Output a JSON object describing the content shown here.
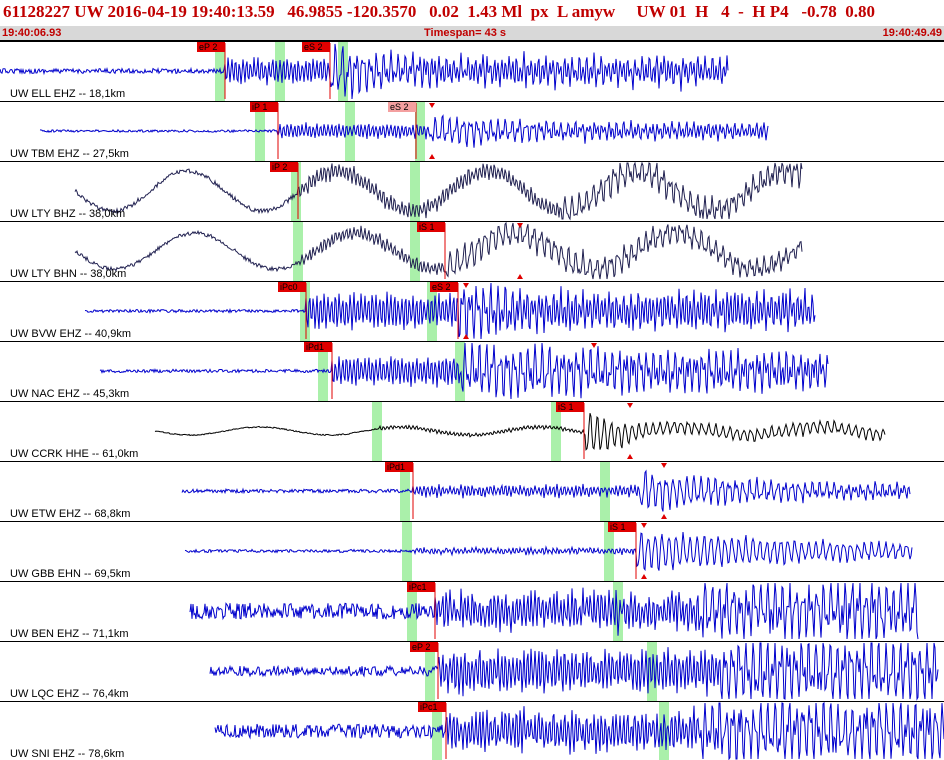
{
  "header": {
    "text": "61128227 UW 2016-04-19 19:40:13.59   46.9855 -120.3570   0.02  1.43 Ml  px  L amyw     UW 01  H   4  -  H P4   -0.78  0.80"
  },
  "subbar": {
    "start_time": "19:40:06.93",
    "timespan": "Timespan=  43 s",
    "end_time": "19:40:49.49"
  },
  "colors": {
    "header_text": "#c00000",
    "trace_blue": "#0000cc",
    "trace_black": "#000000",
    "trace_navy": "#202050",
    "pick_red": "#e00000",
    "pick_pink": "#f4a0a0",
    "window_green": "#aaf0aa",
    "divider": "#000000"
  },
  "traces": [
    {
      "label": "UW ELL EHZ -- 18,1km",
      "color": "blue",
      "start": 0,
      "end": 728,
      "style": "noise",
      "noise": 2.4,
      "signal_at": 225,
      "signal_amp": 14,
      "big_at": 330,
      "big_amp": 26,
      "decay": 0.012,
      "green": [
        220,
        280,
        343
      ],
      "picks": [
        {
          "x": 225,
          "text": "eP 2",
          "pink": false
        },
        {
          "x": 330,
          "text": "eS 2",
          "pink": false
        }
      ],
      "triangles": []
    },
    {
      "label": "UW TBM EHZ -- 27,5km",
      "color": "blue",
      "start": 40,
      "end": 768,
      "style": "noise",
      "noise": 1.2,
      "signal_at": 278,
      "signal_amp": 8,
      "big_at": 430,
      "big_amp": 14,
      "decay": 0.006,
      "green": [
        260,
        350,
        420
      ],
      "picks": [
        {
          "x": 278,
          "text": "iP 1",
          "pink": false
        },
        {
          "x": 416,
          "text": "eS 2",
          "pink": true
        }
      ],
      "triangles": [
        {
          "x": 432,
          "dir": "down"
        },
        {
          "x": 432,
          "dir": "up"
        }
      ]
    },
    {
      "label": "UW LTY BHZ -- 38,0km",
      "color": "navy",
      "start": 75,
      "end": 802,
      "style": "swell",
      "noise": 2.2,
      "signal_at": 298,
      "signal_amp": 9,
      "big_at": 560,
      "big_amp": 12,
      "decay": 0.002,
      "swell_amp": 20,
      "swell_period": 150,
      "green": [
        296,
        415
      ],
      "picks": [
        {
          "x": 298,
          "text": "iP 2",
          "pink": false
        }
      ],
      "triangles": []
    },
    {
      "label": "UW LTY BHN -- 38,0km",
      "color": "navy",
      "start": 75,
      "end": 802,
      "style": "swell",
      "noise": 2.0,
      "signal_at": 300,
      "signal_amp": 7,
      "big_at": 445,
      "big_amp": 14,
      "decay": 0.002,
      "swell_amp": 18,
      "swell_period": 160,
      "green": [
        298,
        415
      ],
      "picks": [
        {
          "x": 445,
          "text": "iS 1",
          "pink": false
        }
      ],
      "triangles": [
        {
          "x": 520,
          "dir": "down"
        },
        {
          "x": 520,
          "dir": "up"
        }
      ]
    },
    {
      "label": "UW BVW EHZ -- 40,9km",
      "color": "blue",
      "start": 85,
      "end": 815,
      "style": "noise",
      "noise": 1.5,
      "signal_at": 306,
      "signal_amp": 20,
      "big_at": 458,
      "big_amp": 24,
      "decay": 0.013,
      "green": [
        305,
        432
      ],
      "picks": [
        {
          "x": 306,
          "text": "iPc0",
          "pink": false
        },
        {
          "x": 458,
          "text": "eS 2",
          "pink": false
        }
      ],
      "triangles": [
        {
          "x": 466,
          "dir": "down"
        },
        {
          "x": 466,
          "dir": "up"
        }
      ]
    },
    {
      "label": "UW NAC EHZ -- 45,3km",
      "color": "blue",
      "start": 100,
      "end": 828,
      "style": "noise",
      "noise": 1.6,
      "signal_at": 332,
      "signal_amp": 16,
      "big_at": 460,
      "big_amp": 22,
      "decay": 0.002,
      "green": [
        323,
        460
      ],
      "picks": [
        {
          "x": 332,
          "text": "iPd1",
          "pink": false
        }
      ],
      "triangles": [
        {
          "x": 594,
          "dir": "down"
        }
      ]
    },
    {
      "label": "UW CCRK HHE -- 61,0km",
      "color": "black",
      "start": 155,
      "end": 885,
      "style": "quiet",
      "noise": 0.6,
      "signal_at": 380,
      "signal_amp": 2,
      "big_at": 585,
      "big_amp": 26,
      "decay": 0.02,
      "swell_amp": 4,
      "swell_period": 140,
      "green": [
        377,
        556
      ],
      "picks": [
        {
          "x": 584,
          "text": "iS 1",
          "pink": false
        }
      ],
      "triangles": [
        {
          "x": 630,
          "dir": "down"
        },
        {
          "x": 630,
          "dir": "up"
        }
      ]
    },
    {
      "label": "UW ETW EHZ -- 68,8km",
      "color": "blue",
      "start": 182,
      "end": 910,
      "style": "noise",
      "noise": 1.8,
      "signal_at": 412,
      "signal_amp": 6,
      "big_at": 640,
      "big_amp": 20,
      "decay": 0.006,
      "green": [
        405,
        605
      ],
      "picks": [
        {
          "x": 413,
          "text": "iPd1",
          "pink": false
        }
      ],
      "triangles": [
        {
          "x": 664,
          "dir": "down"
        },
        {
          "x": 664,
          "dir": "up"
        }
      ]
    },
    {
      "label": "UW GBB EHN -- 69,5km",
      "color": "blue",
      "start": 185,
      "end": 912,
      "style": "noise",
      "noise": 1.5,
      "signal_at": 410,
      "signal_amp": 3,
      "big_at": 636,
      "big_amp": 22,
      "decay": 0.004,
      "green": [
        407,
        609
      ],
      "picks": [
        {
          "x": 636,
          "text": "iS 1",
          "pink": false
        }
      ],
      "triangles": [
        {
          "x": 644,
          "dir": "down"
        },
        {
          "x": 644,
          "dir": "up"
        }
      ]
    },
    {
      "label": "UW BEN EHZ -- 71,1km",
      "color": "blue",
      "start": 190,
      "end": 918,
      "style": "noise",
      "noise": 8,
      "signal_at": 435,
      "signal_amp": 18,
      "big_at": 700,
      "big_amp": 22,
      "decay": 0.0,
      "green": [
        412,
        618
      ],
      "picks": [
        {
          "x": 435,
          "text": "iPc1",
          "pink": false
        }
      ],
      "triangles": []
    },
    {
      "label": "UW LQC EHZ -- 76,4km",
      "color": "blue",
      "start": 210,
      "end": 938,
      "style": "noise",
      "noise": 5,
      "signal_at": 438,
      "signal_amp": 22,
      "big_at": 720,
      "big_amp": 24,
      "decay": 0.0,
      "green": [
        430,
        652
      ],
      "picks": [
        {
          "x": 438,
          "text": "eP 2",
          "pink": false
        }
      ],
      "triangles": []
    },
    {
      "label": "UW SNI EHZ -- 78,6km",
      "color": "blue",
      "start": 215,
      "end": 944,
      "style": "noise",
      "noise": 7,
      "signal_at": 446,
      "signal_amp": 20,
      "big_at": 700,
      "big_amp": 24,
      "decay": 0.0,
      "green": [
        437,
        664
      ],
      "picks": [
        {
          "x": 446,
          "text": "iPc1",
          "pink": false
        }
      ],
      "triangles": []
    }
  ]
}
